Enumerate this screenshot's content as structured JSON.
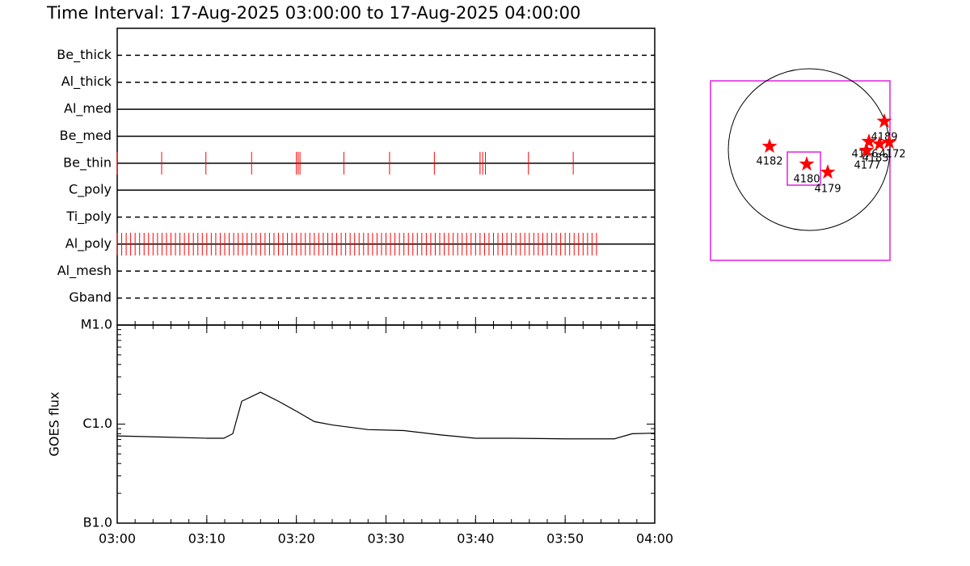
{
  "title": "Time Interval: 17-Aug-2025 03:00:00 to 17-Aug-2025 04:00:00",
  "chart_data": [
    {
      "type": "events",
      "xlim": [
        0,
        60
      ],
      "event_color": "#ff0000",
      "rows": [
        {
          "name": "Be_thick",
          "style": "dashed",
          "events": []
        },
        {
          "name": "Al_thick",
          "style": "dashed",
          "events": []
        },
        {
          "name": "Al_med",
          "style": "solid",
          "events": []
        },
        {
          "name": "Be_med",
          "style": "solid",
          "events": []
        },
        {
          "name": "Be_thin",
          "style": "solid",
          "events": [
            0,
            4.96,
            9.9,
            15,
            20,
            20.2,
            20.4,
            25.3,
            30.4,
            35.4,
            40.5,
            40.8,
            41.1,
            45.9,
            50.9
          ]
        },
        {
          "name": "C_poly",
          "style": "solid",
          "events": []
        },
        {
          "name": "Ti_poly",
          "style": "dashed",
          "events": []
        },
        {
          "name": "Al_poly",
          "style": "solid",
          "events": [
            0,
            0.5,
            1,
            1.5,
            2,
            2.5,
            3,
            3.5,
            4,
            4.5,
            5,
            5.5,
            6,
            6.5,
            7,
            7.5,
            8,
            8.5,
            9,
            9.5,
            10,
            10.5,
            11,
            11.5,
            12,
            12.5,
            13,
            13.5,
            14,
            14.5,
            15,
            15.5,
            16,
            16.5,
            17,
            17.5,
            18,
            18.5,
            19,
            19.5,
            20,
            20.5,
            21,
            21.5,
            22,
            22.5,
            23,
            23.5,
            24,
            24.5,
            25,
            25.5,
            26,
            26.5,
            27,
            27.5,
            28,
            28.5,
            29,
            29.5,
            30,
            30.5,
            31,
            31.5,
            32,
            32.5,
            33,
            33.5,
            34,
            34.5,
            35,
            35.5,
            36,
            36.5,
            37,
            37.5,
            38,
            38.5,
            39,
            39.5,
            40,
            40.5,
            41,
            41.5,
            42,
            42.5,
            43,
            43.5,
            44,
            44.5,
            45,
            45.5,
            46,
            46.5,
            47,
            47.5,
            48,
            48.5,
            49,
            49.5,
            50,
            50.5,
            51,
            51.5,
            52,
            52.5,
            53,
            53.5
          ]
        },
        {
          "name": "Al_mesh",
          "style": "dashed",
          "events": []
        },
        {
          "name": "Gband",
          "style": "dashed",
          "events": []
        }
      ]
    },
    {
      "type": "line",
      "y_label": "GOES flux",
      "log_y": true,
      "color": "#000000",
      "xlim": [
        0,
        60
      ],
      "xticks": [
        {
          "value": 0,
          "label": "03:00"
        },
        {
          "value": 10,
          "label": "03:10"
        },
        {
          "value": 20,
          "label": "03:20"
        },
        {
          "value": 30,
          "label": "03:30"
        },
        {
          "value": 40,
          "label": "03:40"
        },
        {
          "value": 50,
          "label": "03:50"
        },
        {
          "value": 60,
          "label": "04:00"
        }
      ],
      "ylim": [
        1e-07,
        1e-05
      ],
      "yticks": [
        {
          "value": 1e-07,
          "label": "B1.0"
        },
        {
          "value": 1e-06,
          "label": "C1.0"
        },
        {
          "value": 1e-05,
          "label": "M1.0"
        }
      ],
      "x": [
        0,
        5,
        10,
        11.9,
        12.9,
        13.9,
        16,
        18,
        20,
        22,
        24,
        28,
        32,
        36,
        40,
        44,
        50,
        55.5,
        57.5,
        60
      ],
      "values": [
        7.6e-07,
        7.4e-07,
        7.2e-07,
        7.2e-07,
        8e-07,
        1.7e-06,
        2.1e-06,
        1.7e-06,
        1.35e-06,
        1.06e-06,
        9.8e-07,
        8.8e-07,
        8.6e-07,
        7.8e-07,
        7.2e-07,
        7.2e-07,
        7.1e-07,
        7.1e-07,
        8e-07,
        8.1e-07
      ]
    }
  ],
  "map": {
    "regions": [
      "4182",
      "4180",
      "4179",
      "4189",
      "4176",
      "4183",
      "4172",
      "4177"
    ]
  }
}
